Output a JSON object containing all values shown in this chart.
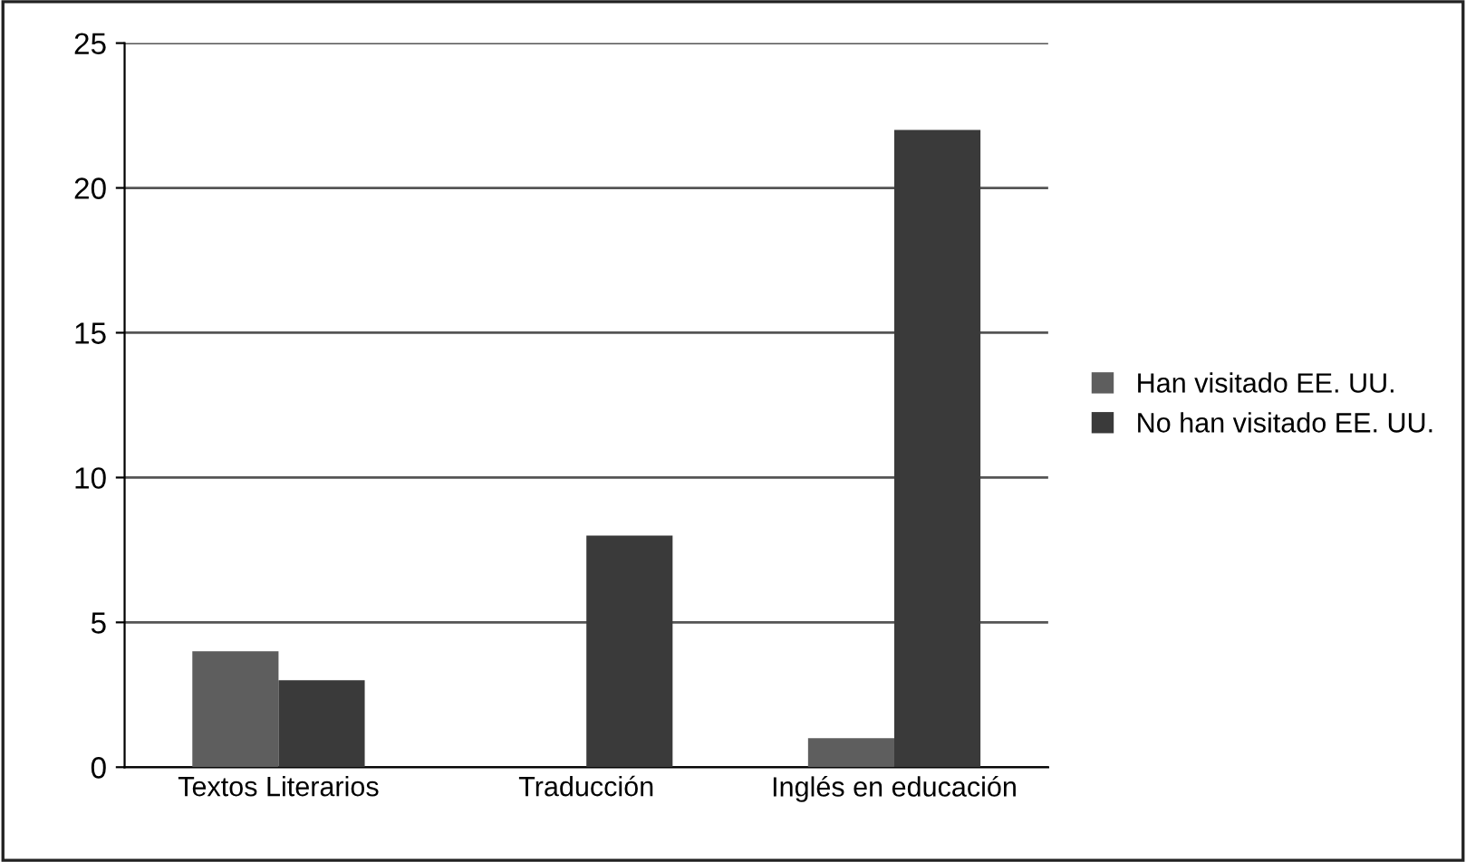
{
  "chart_data": {
    "type": "bar",
    "categories": [
      "Textos Literarios",
      "Traducción",
      "Inglés en educación"
    ],
    "series": [
      {
        "name": "Han visitado EE. UU.",
        "color": "#5e5e5e",
        "values": [
          4,
          0,
          1
        ]
      },
      {
        "name": "No han visitado EE. UU.",
        "color": "#3a3a3a",
        "values": [
          3,
          8,
          22
        ]
      }
    ],
    "ylim": [
      0,
      25
    ],
    "yticks": [
      0,
      5,
      10,
      15,
      20,
      25
    ],
    "grid": "y",
    "legend": "right"
  }
}
